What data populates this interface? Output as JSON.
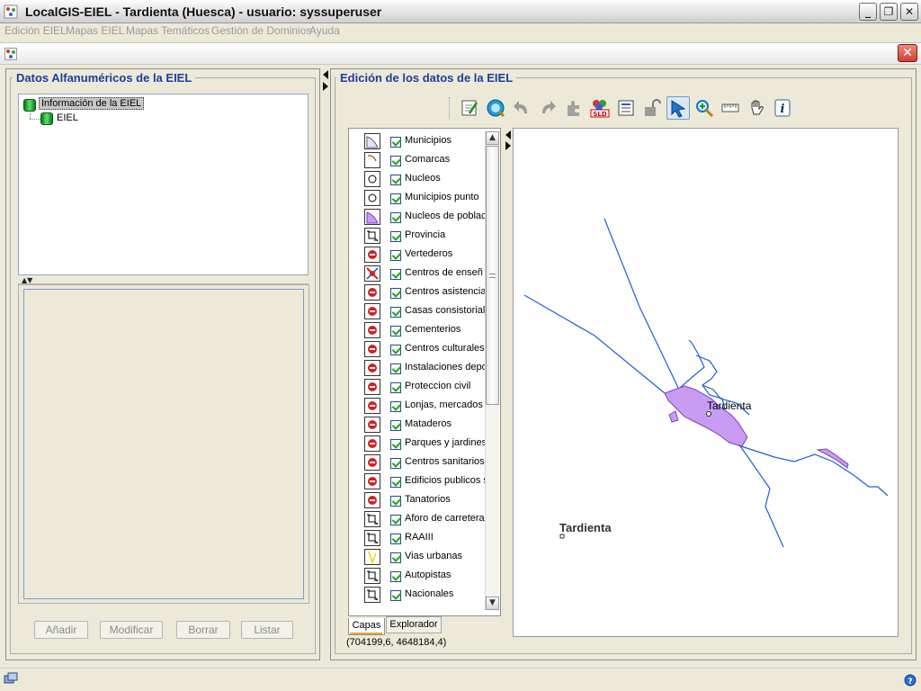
{
  "app": {
    "title": "LocalGIS-EIEL - Tardienta (Huesca) - usuario: syssuperuser",
    "window_buttons": [
      "_",
      "❐",
      "✕"
    ]
  },
  "menu": [
    "Edición EIEL",
    "Mapas EIEL",
    "Mapas Temáticos",
    "Gestión de Dominios",
    "Ayuda"
  ],
  "left_panel": {
    "title": "Datos Alfanuméricos de la EIEL",
    "tree": {
      "root": "Información de la EIEL",
      "child": "EIEL"
    },
    "buttons": [
      "Añadir",
      "Modificar",
      "Borrar",
      "Listar"
    ]
  },
  "right_panel": {
    "title": "Edición de los datos de la EIEL",
    "toolbar": [
      {
        "name": "edit-layer-icon"
      },
      {
        "name": "zoom-extent-icon"
      },
      {
        "name": "undo-icon"
      },
      {
        "name": "redo-icon"
      },
      {
        "name": "plugin-icon"
      },
      {
        "name": "sld-style-icon",
        "label": "SLD"
      },
      {
        "name": "attribute-table-icon"
      },
      {
        "name": "lock-icon"
      },
      {
        "name": "select-arrow-icon"
      },
      {
        "name": "zoom-in-icon"
      },
      {
        "name": "measure-ruler-icon"
      },
      {
        "name": "pan-hand-icon"
      },
      {
        "name": "info-icon",
        "label": "i"
      }
    ],
    "layers": [
      {
        "name": "Municipios",
        "icon": "polygon-icon"
      },
      {
        "name": "Comarcas",
        "icon": "line-icon"
      },
      {
        "name": "Nucleos",
        "icon": "point-icon"
      },
      {
        "name": "Municipios punto",
        "icon": "point-icon"
      },
      {
        "name": "Nucleos de poblaci",
        "icon": "purple-polygon-icon"
      },
      {
        "name": "Provincia",
        "icon": "geometry-icon"
      },
      {
        "name": "Vertederos",
        "icon": "red-dot-icon"
      },
      {
        "name": "Centros de enseñ",
        "icon": "red-cross-icon"
      },
      {
        "name": "Centros asistencia",
        "icon": "red-dot-icon"
      },
      {
        "name": "Casas consistoriale",
        "icon": "red-dot-icon"
      },
      {
        "name": "Cementerios",
        "icon": "red-dot-icon"
      },
      {
        "name": "Centros culturales",
        "icon": "red-dot-icon"
      },
      {
        "name": "Instalaciones depo",
        "icon": "red-dot-icon"
      },
      {
        "name": "Proteccion civil",
        "icon": "red-dot-icon"
      },
      {
        "name": "Lonjas, mercados",
        "icon": "red-dot-icon"
      },
      {
        "name": "Mataderos",
        "icon": "red-dot-icon"
      },
      {
        "name": "Parques y jardines",
        "icon": "red-dot-icon"
      },
      {
        "name": "Centros sanitarios",
        "icon": "red-dot-icon"
      },
      {
        "name": "Edificios publicos s",
        "icon": "red-dot-icon"
      },
      {
        "name": "Tanatorios",
        "icon": "red-dot-icon"
      },
      {
        "name": "Aforo de carretera",
        "icon": "geometry-icon"
      },
      {
        "name": "RAAIII",
        "icon": "geometry-icon"
      },
      {
        "name": "Vias urbanas",
        "icon": "yellow-line-icon"
      },
      {
        "name": "Autopistas",
        "icon": "geometry-icon"
      },
      {
        "name": "Nacionales",
        "icon": "geometry-icon"
      }
    ],
    "tabs": [
      "Capas",
      "Explorador"
    ],
    "active_tab": "Capas",
    "coordinates": "(704199,6, 4648184,4)",
    "map_labels": {
      "town_label": "Tardienta",
      "town_label_large": "Tardienta"
    }
  },
  "colors": {
    "panel_title": "#1c3e9e",
    "polygon_fill": "#c79cf2",
    "road_line": "#1a5fd6"
  }
}
